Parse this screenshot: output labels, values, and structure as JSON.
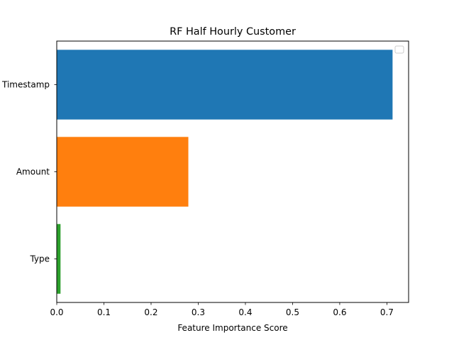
{
  "chart_data": {
    "type": "bar",
    "orientation": "horizontal",
    "title": "RF Half Hourly Customer",
    "xlabel": "Feature Importance Score",
    "ylabel": "",
    "categories": [
      "Timestamp",
      "Amount",
      "Type"
    ],
    "values": [
      0.712,
      0.279,
      0.008
    ],
    "colors": [
      "#1f77b4",
      "#ff7f0e",
      "#2ca02c"
    ],
    "xlim": [
      0,
      0.746
    ],
    "xticks": [
      "0.0",
      "0.1",
      "0.2",
      "0.3",
      "0.4",
      "0.5",
      "0.6",
      "0.7"
    ],
    "grid": false,
    "legend": {
      "placement": "top-right",
      "entries": []
    }
  }
}
